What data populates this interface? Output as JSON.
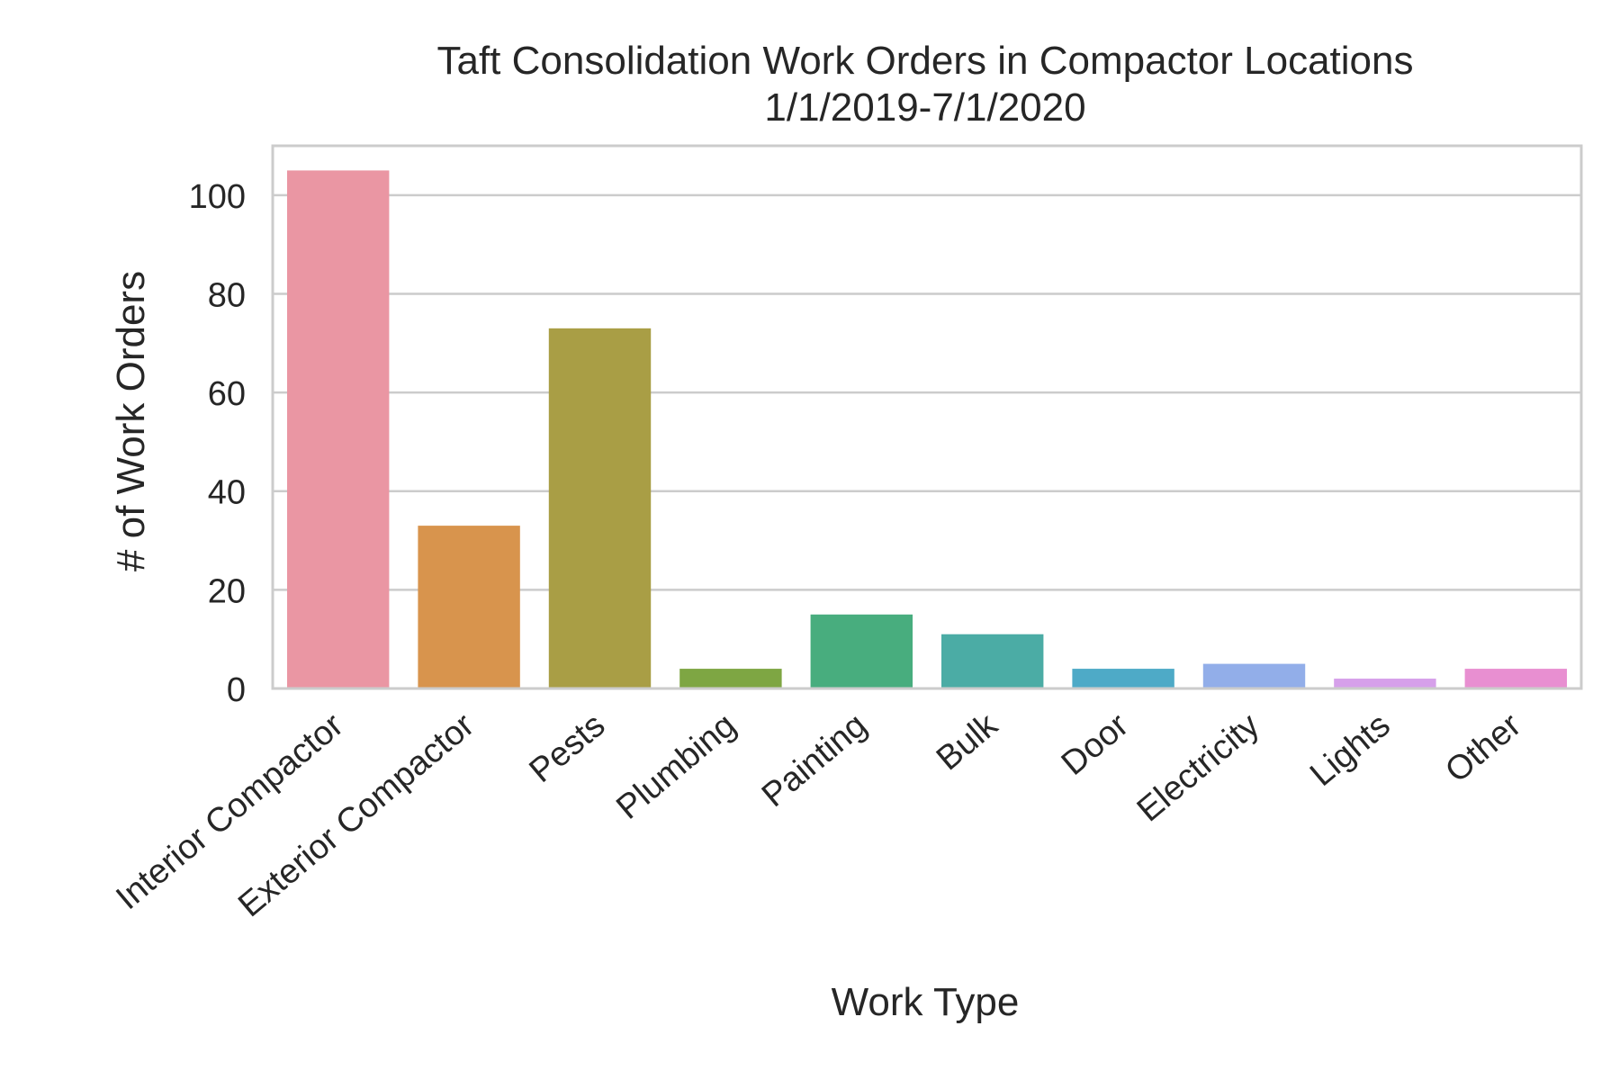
{
  "chart_data": {
    "type": "bar",
    "title": "Taft Consolidation Work Orders in Compactor Locations",
    "subtitle": "1/1/2019-7/1/2020",
    "xlabel": "Work Type",
    "ylabel": "# of Work Orders",
    "ylim": [
      0,
      110
    ],
    "yticks": [
      0,
      20,
      40,
      60,
      80,
      100
    ],
    "grid": "horizontal",
    "categories": [
      "Interior Compactor",
      "Exterior Compactor",
      "Pests",
      "Plumbing",
      "Painting",
      "Bulk",
      "Door",
      "Electricity",
      "Lights",
      "Other"
    ],
    "values": [
      105,
      33,
      73,
      4,
      15,
      11,
      4,
      5,
      2,
      4
    ],
    "colors": [
      "#ea96a3",
      "#d8944d",
      "#a99e45",
      "#7ea643",
      "#48ad7e",
      "#4baca5",
      "#4eaac7",
      "#92aee9",
      "#d6a0ea",
      "#e88fd1"
    ]
  }
}
